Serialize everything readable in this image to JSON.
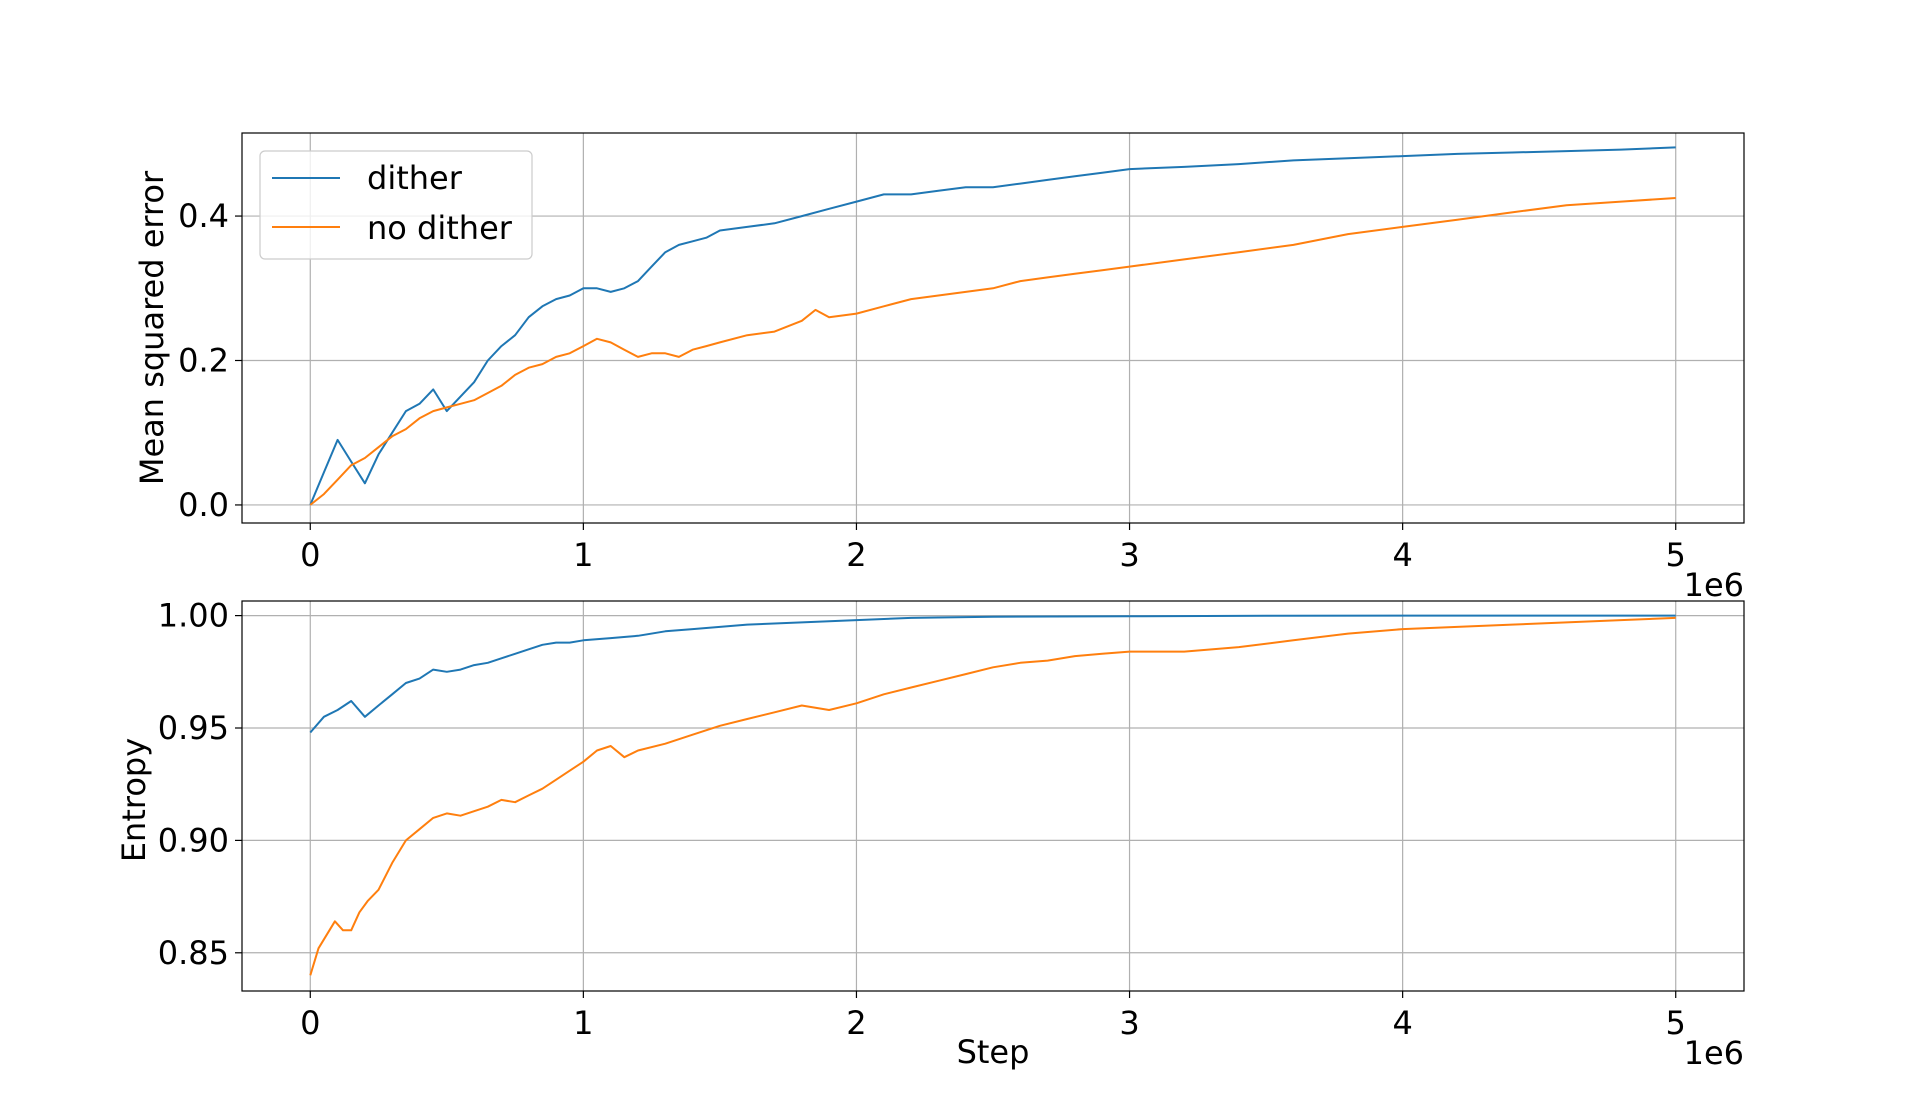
{
  "chart_data": [
    {
      "type": "line",
      "id": "mse",
      "xlabel": "",
      "ylabel": "Mean squared error",
      "xlim": [
        -250000,
        5250000
      ],
      "ylim": [
        -0.025,
        0.515
      ],
      "x_ticks": [
        0,
        1000000,
        2000000,
        3000000,
        4000000,
        5000000
      ],
      "x_tick_labels": [
        "0",
        "1",
        "2",
        "3",
        "4",
        "5"
      ],
      "x_offset_label": "1e6",
      "y_ticks": [
        0.0,
        0.2,
        0.4
      ],
      "y_tick_labels": [
        "0.0",
        "0.2",
        "0.4"
      ],
      "grid": true,
      "legend": {
        "placement": "top-left",
        "entries": [
          {
            "label": "dither",
            "color": "#1f77b4"
          },
          {
            "label": "no dither",
            "color": "#ff7f0e"
          }
        ]
      },
      "series": [
        {
          "name": "dither",
          "color": "#1f77b4",
          "x": [
            0,
            50000,
            100000,
            150000,
            200000,
            250000,
            300000,
            350000,
            400000,
            450000,
            500000,
            550000,
            600000,
            650000,
            700000,
            750000,
            800000,
            850000,
            900000,
            950000,
            1000000,
            1050000,
            1100000,
            1150000,
            1200000,
            1250000,
            1300000,
            1350000,
            1400000,
            1450000,
            1500000,
            1600000,
            1700000,
            1800000,
            1900000,
            2000000,
            2100000,
            2200000,
            2300000,
            2400000,
            2500000,
            2600000,
            2700000,
            2800000,
            2900000,
            3000000,
            3200000,
            3400000,
            3600000,
            3800000,
            4000000,
            4200000,
            4400000,
            4600000,
            4800000,
            5000000
          ],
          "y": [
            0.0,
            0.045,
            0.09,
            0.06,
            0.03,
            0.07,
            0.1,
            0.13,
            0.14,
            0.16,
            0.13,
            0.15,
            0.17,
            0.2,
            0.22,
            0.235,
            0.26,
            0.275,
            0.285,
            0.29,
            0.3,
            0.3,
            0.295,
            0.3,
            0.31,
            0.33,
            0.35,
            0.36,
            0.365,
            0.37,
            0.38,
            0.385,
            0.39,
            0.4,
            0.41,
            0.42,
            0.43,
            0.43,
            0.435,
            0.44,
            0.44,
            0.445,
            0.45,
            0.455,
            0.46,
            0.465,
            0.468,
            0.472,
            0.477,
            0.48,
            0.483,
            0.486,
            0.488,
            0.49,
            0.492,
            0.495
          ]
        },
        {
          "name": "no dither",
          "color": "#ff7f0e",
          "x": [
            0,
            50000,
            100000,
            150000,
            200000,
            250000,
            300000,
            350000,
            400000,
            450000,
            500000,
            550000,
            600000,
            650000,
            700000,
            750000,
            800000,
            850000,
            900000,
            950000,
            1000000,
            1050000,
            1100000,
            1150000,
            1200000,
            1250000,
            1300000,
            1350000,
            1400000,
            1450000,
            1500000,
            1600000,
            1700000,
            1800000,
            1850000,
            1900000,
            2000000,
            2100000,
            2200000,
            2300000,
            2400000,
            2500000,
            2600000,
            2700000,
            2800000,
            2900000,
            3000000,
            3200000,
            3400000,
            3600000,
            3800000,
            4000000,
            4200000,
            4400000,
            4600000,
            4800000,
            5000000
          ],
          "y": [
            0.0,
            0.015,
            0.035,
            0.055,
            0.065,
            0.08,
            0.095,
            0.105,
            0.12,
            0.13,
            0.135,
            0.14,
            0.145,
            0.155,
            0.165,
            0.18,
            0.19,
            0.195,
            0.205,
            0.21,
            0.22,
            0.23,
            0.225,
            0.215,
            0.205,
            0.21,
            0.21,
            0.205,
            0.215,
            0.22,
            0.225,
            0.235,
            0.24,
            0.255,
            0.27,
            0.26,
            0.265,
            0.275,
            0.285,
            0.29,
            0.295,
            0.3,
            0.31,
            0.315,
            0.32,
            0.325,
            0.33,
            0.34,
            0.35,
            0.36,
            0.375,
            0.385,
            0.395,
            0.405,
            0.415,
            0.42,
            0.425
          ]
        }
      ]
    },
    {
      "type": "line",
      "id": "entropy",
      "xlabel": "Step",
      "ylabel": "Entropy",
      "xlim": [
        -250000,
        5250000
      ],
      "ylim": [
        0.833,
        1.0065
      ],
      "x_ticks": [
        0,
        1000000,
        2000000,
        3000000,
        4000000,
        5000000
      ],
      "x_tick_labels": [
        "0",
        "1",
        "2",
        "3",
        "4",
        "5"
      ],
      "x_offset_label": "1e6",
      "y_ticks": [
        0.85,
        0.9,
        0.95,
        1.0
      ],
      "y_tick_labels": [
        "0.85",
        "0.90",
        "0.95",
        "1.00"
      ],
      "grid": true,
      "series": [
        {
          "name": "dither",
          "color": "#1f77b4",
          "x": [
            0,
            50000,
            100000,
            150000,
            200000,
            250000,
            300000,
            350000,
            400000,
            450000,
            500000,
            550000,
            600000,
            650000,
            700000,
            750000,
            800000,
            850000,
            900000,
            950000,
            1000000,
            1100000,
            1200000,
            1300000,
            1400000,
            1500000,
            1600000,
            1800000,
            2000000,
            2200000,
            2500000,
            3000000,
            3500000,
            4000000,
            4500000,
            5000000
          ],
          "y": [
            0.948,
            0.955,
            0.958,
            0.962,
            0.955,
            0.96,
            0.965,
            0.97,
            0.972,
            0.976,
            0.975,
            0.976,
            0.978,
            0.979,
            0.981,
            0.983,
            0.985,
            0.987,
            0.988,
            0.988,
            0.989,
            0.99,
            0.991,
            0.993,
            0.994,
            0.995,
            0.996,
            0.997,
            0.998,
            0.999,
            0.9995,
            0.9997,
            0.9999,
            1.0,
            1.0,
            1.0
          ]
        },
        {
          "name": "no dither",
          "color": "#ff7f0e",
          "x": [
            0,
            30000,
            60000,
            90000,
            120000,
            150000,
            180000,
            210000,
            250000,
            300000,
            350000,
            400000,
            450000,
            500000,
            550000,
            600000,
            650000,
            700000,
            750000,
            800000,
            850000,
            900000,
            950000,
            1000000,
            1050000,
            1100000,
            1150000,
            1200000,
            1300000,
            1400000,
            1500000,
            1600000,
            1700000,
            1800000,
            1900000,
            2000000,
            2100000,
            2200000,
            2300000,
            2400000,
            2500000,
            2600000,
            2700000,
            2800000,
            2900000,
            3000000,
            3200000,
            3400000,
            3600000,
            3800000,
            4000000,
            4200000,
            4400000,
            4600000,
            4800000,
            5000000
          ],
          "y": [
            0.84,
            0.852,
            0.858,
            0.864,
            0.86,
            0.86,
            0.868,
            0.873,
            0.878,
            0.89,
            0.9,
            0.905,
            0.91,
            0.912,
            0.911,
            0.913,
            0.915,
            0.918,
            0.917,
            0.92,
            0.923,
            0.927,
            0.931,
            0.935,
            0.94,
            0.942,
            0.937,
            0.94,
            0.943,
            0.947,
            0.951,
            0.954,
            0.957,
            0.96,
            0.958,
            0.961,
            0.965,
            0.968,
            0.971,
            0.974,
            0.977,
            0.979,
            0.98,
            0.982,
            0.983,
            0.984,
            0.984,
            0.986,
            0.989,
            0.992,
            0.994,
            0.995,
            0.996,
            0.997,
            0.998,
            0.999
          ]
        }
      ]
    }
  ]
}
